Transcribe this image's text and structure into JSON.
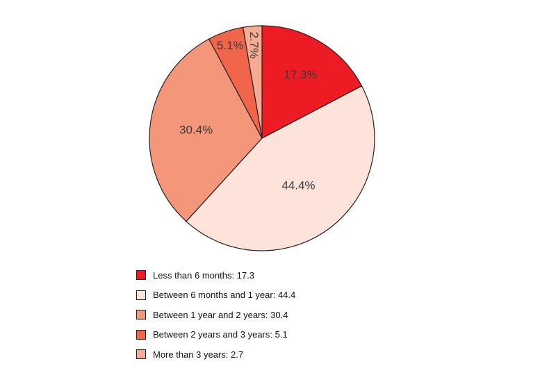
{
  "chart_data": {
    "type": "pie",
    "title": "",
    "slices": [
      {
        "label": "Less than 6 months",
        "value": 17.3,
        "display": "17.3%",
        "legend_text": "Less than 6 months: 17.3",
        "color": "#ed1c24"
      },
      {
        "label": "Between 6 months and 1 year",
        "value": 44.4,
        "display": "44.4%",
        "legend_text": "Between 6 months and 1 year: 44.4",
        "color": "#fde3da"
      },
      {
        "label": "Between 1 year and 2 years",
        "value": 30.4,
        "display": "30.4%",
        "legend_text": "Between 1 year and 2 years: 30.4",
        "color": "#f4967a"
      },
      {
        "label": "Between 2 years and 3 years",
        "value": 5.1,
        "display": "5.1%",
        "legend_text": "Between 2 years and 3 years: 5.1",
        "color": "#f1654b"
      },
      {
        "label": "More than 3 years",
        "value": 2.7,
        "display": "2.7%",
        "legend_text": "More than 3 years: 2.7",
        "color": "#f7ab92"
      }
    ],
    "start_angle": "12 o'clock",
    "direction": "clockwise",
    "legend_position": "bottom-left"
  }
}
